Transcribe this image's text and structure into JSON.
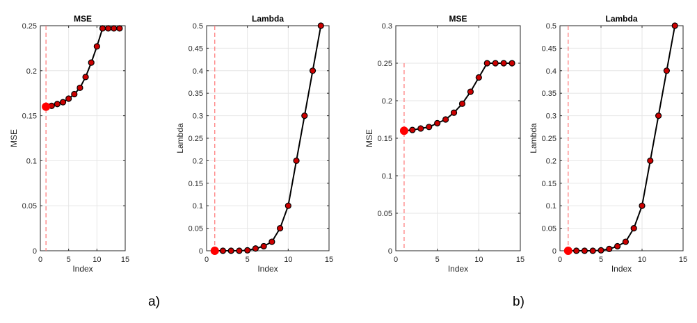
{
  "captions": {
    "a": "a)",
    "b": "b)"
  },
  "colors": {
    "line": "#000000",
    "marker_fill": "#cc0000",
    "marker_edge": "#000000",
    "selected_marker": "#ff0000",
    "reference_line": "#ff7f7f",
    "grid": "#e6e6e6",
    "axis": "#262626"
  },
  "chart_data": [
    {
      "id": "a-mse",
      "type": "line",
      "title": "MSE",
      "xlabel": "Index",
      "ylabel": "MSE",
      "xlim": [
        0,
        15
      ],
      "ylim": [
        0,
        0.25
      ],
      "xticks": [
        0,
        5,
        10,
        15
      ],
      "yticks": [
        0,
        0.05,
        0.1,
        0.15,
        0.2,
        0.25
      ],
      "ytick_labels": [
        "0",
        "0.05",
        "0.1",
        "0.15",
        "0.2",
        "0.25"
      ],
      "grid": true,
      "x": [
        1,
        2,
        3,
        4,
        5,
        6,
        7,
        8,
        9,
        10,
        11,
        12,
        13,
        14
      ],
      "y": [
        0.16,
        0.161,
        0.163,
        0.165,
        0.169,
        0.174,
        0.181,
        0.193,
        0.209,
        0.227,
        0.247,
        0.247,
        0.247,
        0.247
      ],
      "selected_index": 1,
      "vline": {
        "x": 1,
        "y_top": 0.25
      }
    },
    {
      "id": "a-lambda",
      "type": "line",
      "title": "Lambda",
      "xlabel": "Index",
      "ylabel": "Lambda",
      "xlim": [
        0,
        15
      ],
      "ylim": [
        0,
        0.5
      ],
      "xticks": [
        0,
        5,
        10,
        15
      ],
      "yticks": [
        0,
        0.05,
        0.1,
        0.15,
        0.2,
        0.25,
        0.3,
        0.35,
        0.4,
        0.45,
        0.5
      ],
      "ytick_labels": [
        "0",
        "0.05",
        "0.1",
        "0.15",
        "0.2",
        "0.25",
        "0.3",
        "0.35",
        "0.4",
        "0.45",
        "0.5"
      ],
      "grid": true,
      "x": [
        1,
        2,
        3,
        4,
        5,
        6,
        7,
        8,
        9,
        10,
        11,
        12,
        13,
        14
      ],
      "y": [
        0,
        0,
        0,
        0,
        0.001,
        0.005,
        0.01,
        0.02,
        0.05,
        0.1,
        0.2,
        0.3,
        0.4,
        0.5
      ],
      "selected_index": 1,
      "vline": {
        "x": 1,
        "y_top": 0.5
      }
    },
    {
      "id": "b-mse",
      "type": "line",
      "title": "MSE",
      "xlabel": "Index",
      "ylabel": "MSE",
      "xlim": [
        0,
        15
      ],
      "ylim": [
        0,
        0.3
      ],
      "xticks": [
        0,
        5,
        10,
        15
      ],
      "yticks": [
        0,
        0.05,
        0.1,
        0.15,
        0.2,
        0.25,
        0.3
      ],
      "ytick_labels": [
        "0",
        "0.05",
        "0.1",
        "0.15",
        "0.2",
        "0.25",
        "0.3"
      ],
      "grid": true,
      "x": [
        1,
        2,
        3,
        4,
        5,
        6,
        7,
        8,
        9,
        10,
        11,
        12,
        13,
        14
      ],
      "y": [
        0.16,
        0.161,
        0.163,
        0.165,
        0.17,
        0.175,
        0.184,
        0.196,
        0.212,
        0.231,
        0.25,
        0.25,
        0.25,
        0.25
      ],
      "selected_index": 1,
      "vline": {
        "x": 1,
        "y_top": 0.25
      }
    },
    {
      "id": "b-lambda",
      "type": "line",
      "title": "Lambda",
      "xlabel": "Index",
      "ylabel": "Lambda",
      "xlim": [
        0,
        15
      ],
      "ylim": [
        0,
        0.5
      ],
      "xticks": [
        0,
        5,
        10,
        15
      ],
      "yticks": [
        0,
        0.05,
        0.1,
        0.15,
        0.2,
        0.25,
        0.3,
        0.35,
        0.4,
        0.45,
        0.5
      ],
      "ytick_labels": [
        "0",
        "0.05",
        "0.1",
        "0.15",
        "0.2",
        "0.25",
        "0.3",
        "0.35",
        "0.4",
        "0.45",
        "0.5"
      ],
      "grid": true,
      "x": [
        1,
        2,
        3,
        4,
        5,
        6,
        7,
        8,
        9,
        10,
        11,
        12,
        13,
        14
      ],
      "y": [
        0,
        0,
        0,
        0,
        0.001,
        0.004,
        0.01,
        0.02,
        0.05,
        0.1,
        0.2,
        0.3,
        0.4,
        0.5
      ],
      "selected_index": 1,
      "vline": {
        "x": 1,
        "y_top": 0.5
      }
    }
  ]
}
